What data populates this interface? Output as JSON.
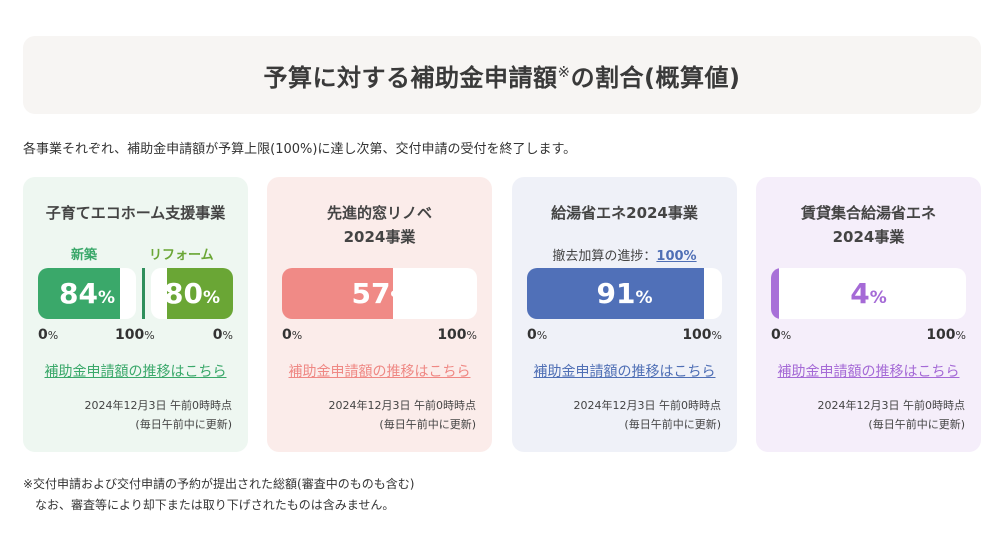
{
  "title": {
    "main": "予算に対する補助金申請額",
    "mark": "※",
    "suffix": "の割合(概算値)"
  },
  "intro": "各事業それぞれ、補助金申請額が予算上限(100%)に達し次第、交付申請の受付を終了します。",
  "cards": [
    {
      "title": "子育てエコホーム支援事業",
      "split": [
        {
          "label": "新築",
          "value": "84",
          "unit": "%",
          "fraction": 0.84,
          "color": "#3aa86a"
        },
        {
          "label": "リフォーム",
          "value": "80",
          "unit": "%",
          "fraction": 0.8,
          "color": "#6aa635"
        }
      ],
      "scale_min": "0",
      "scale_min_unit": "%",
      "scale_mid": "100",
      "scale_mid_unit": "%",
      "scale_max": "0",
      "scale_max_unit": "%",
      "link": "補助金申請額の推移はこちら",
      "meta_date": "2024年12月3日 午前0時時点",
      "meta_note": "(毎日午前中に更新)",
      "bg": "#eef7f1",
      "accent": "#3aa86a"
    },
    {
      "title_line1": "先進的窓リノベ",
      "title_line2": "2024事業",
      "value": "57",
      "unit": "%",
      "fraction": 0.57,
      "scale_min": "0",
      "scale_min_unit": "%",
      "scale_max": "100",
      "scale_max_unit": "%",
      "link": "補助金申請額の推移はこちら",
      "meta_date": "2024年12月3日 午前0時時点",
      "meta_note": "(毎日午前中に更新)",
      "bg": "#fbecea",
      "accent": "#ef8884",
      "bar": "#f08a86"
    },
    {
      "title": "給湯省エネ2024事業",
      "sub_label": "撤去加算の進捗：",
      "sub_value": "100%",
      "value": "91",
      "unit": "%",
      "fraction": 0.91,
      "scale_min": "0",
      "scale_min_unit": "%",
      "scale_max": "100",
      "scale_max_unit": "%",
      "link": "補助金申請額の推移はこちら",
      "meta_date": "2024年12月3日 午前0時時点",
      "meta_note": "(毎日午前中に更新)",
      "bg": "#eff1f8",
      "accent": "#4f6fb5",
      "bar": "#5070b8"
    },
    {
      "title_line1": "賃貸集合給湯省エネ",
      "title_line2": "2024事業",
      "value": "4",
      "unit": "%",
      "fraction": 0.04,
      "scale_min": "0",
      "scale_min_unit": "%",
      "scale_max": "100",
      "scale_max_unit": "%",
      "link": "補助金申請額の推移はこちら",
      "meta_date": "2024年12月3日 午前0時時点",
      "meta_note": "(毎日午前中に更新)",
      "bg": "#f5eefa",
      "accent": "#a56ad6",
      "bar": "#a870d8"
    }
  ],
  "footnote": {
    "line1": "※交付申請および交付申請の予約が提出された総額(審査中のものも含む)",
    "line2": "なお、審査等により却下または取り下げされたものは含みません。"
  }
}
